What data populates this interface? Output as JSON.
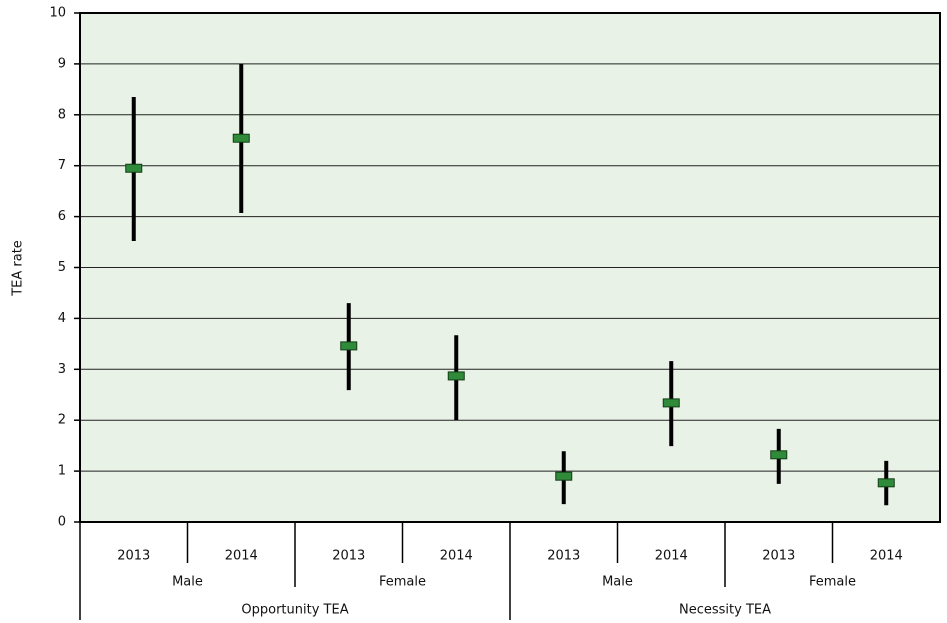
{
  "chart_data": {
    "type": "errorbar",
    "y_label": "TEA rate",
    "categories": [
      "2013",
      "2014",
      "2013",
      "2014",
      "2013",
      "2014",
      "2013",
      "2014"
    ],
    "gender_groups": [
      "Male",
      "Female",
      "Male",
      "Female"
    ],
    "tea_groups": [
      "Opportunity TEA",
      "Necessity TEA"
    ],
    "values": [
      6.95,
      7.54,
      3.46,
      2.87,
      0.9,
      2.34,
      1.32,
      0.77
    ],
    "low": [
      5.52,
      6.07,
      2.59,
      2.0,
      0.35,
      1.49,
      0.75,
      0.33
    ],
    "high": [
      8.35,
      9.0,
      4.3,
      3.67,
      1.39,
      3.16,
      1.83,
      1.2
    ],
    "color": "#2f8a3a",
    "whisker_color": "#000000",
    "ylim": [
      0,
      10
    ],
    "yticks": [
      0,
      1,
      2,
      3,
      4,
      5,
      6,
      7,
      8,
      9,
      10
    ],
    "grid": true
  }
}
